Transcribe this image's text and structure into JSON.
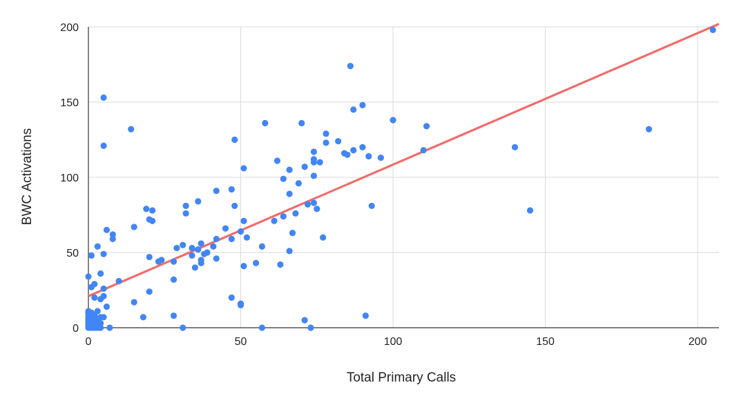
{
  "colors": {
    "point": "#4285f4",
    "trendline": "#f26b6b",
    "grid": "#d9d9d9",
    "axis": "#333333",
    "text": "#222222",
    "background": "#ffffff"
  },
  "chart_data": {
    "type": "scatter",
    "title": "",
    "xlabel": "Total Primary Calls",
    "ylabel": "BWC Activations",
    "xlim": [
      0,
      207
    ],
    "ylim": [
      0,
      200
    ],
    "xticks": [
      0,
      50,
      100,
      150,
      200
    ],
    "yticks": [
      0,
      50,
      100,
      150,
      200
    ],
    "grid": true,
    "legend": "none",
    "trendline": {
      "type": "linear",
      "points": [
        [
          0,
          21
        ],
        [
          207,
          202
        ]
      ]
    },
    "points": [
      [
        0,
        34
      ],
      [
        0,
        11
      ],
      [
        0,
        10
      ],
      [
        0,
        9
      ],
      [
        0,
        7
      ],
      [
        0,
        6
      ],
      [
        0,
        5
      ],
      [
        0,
        4
      ],
      [
        0,
        3
      ],
      [
        0,
        2
      ],
      [
        0,
        1
      ],
      [
        0,
        0
      ],
      [
        1,
        48
      ],
      [
        1,
        27
      ],
      [
        1,
        10
      ],
      [
        1,
        7
      ],
      [
        1,
        5
      ],
      [
        1,
        4
      ],
      [
        1,
        2
      ],
      [
        1,
        0
      ],
      [
        2,
        29
      ],
      [
        2,
        20
      ],
      [
        2,
        8
      ],
      [
        2,
        5
      ],
      [
        2,
        2
      ],
      [
        2,
        0
      ],
      [
        3,
        54
      ],
      [
        3,
        11
      ],
      [
        3,
        6
      ],
      [
        3,
        4
      ],
      [
        3,
        2
      ],
      [
        3,
        0
      ],
      [
        4,
        36
      ],
      [
        4,
        19
      ],
      [
        4,
        7
      ],
      [
        4,
        3
      ],
      [
        4,
        0
      ],
      [
        5,
        153
      ],
      [
        5,
        121
      ],
      [
        5,
        49
      ],
      [
        5,
        26
      ],
      [
        5,
        21
      ],
      [
        5,
        7
      ],
      [
        6,
        65
      ],
      [
        6,
        14
      ],
      [
        7,
        0
      ],
      [
        8,
        62
      ],
      [
        8,
        59
      ],
      [
        10,
        31
      ],
      [
        14,
        132
      ],
      [
        15,
        67
      ],
      [
        15,
        17
      ],
      [
        18,
        7
      ],
      [
        19,
        79
      ],
      [
        20,
        72
      ],
      [
        20,
        47
      ],
      [
        20,
        24
      ],
      [
        21,
        78
      ],
      [
        21,
        71
      ],
      [
        23,
        44
      ],
      [
        24,
        45
      ],
      [
        28,
        44
      ],
      [
        28,
        32
      ],
      [
        28,
        8
      ],
      [
        29,
        53
      ],
      [
        31,
        55
      ],
      [
        31,
        0
      ],
      [
        32,
        81
      ],
      [
        32,
        76
      ],
      [
        34,
        53
      ],
      [
        34,
        48
      ],
      [
        35,
        40
      ],
      [
        36,
        84
      ],
      [
        36,
        52
      ],
      [
        37,
        56
      ],
      [
        37,
        45
      ],
      [
        37,
        43
      ],
      [
        38,
        49
      ],
      [
        39,
        50
      ],
      [
        41,
        54
      ],
      [
        42,
        91
      ],
      [
        42,
        59
      ],
      [
        42,
        46
      ],
      [
        45,
        66
      ],
      [
        47,
        92
      ],
      [
        47,
        59
      ],
      [
        47,
        20
      ],
      [
        48,
        125
      ],
      [
        48,
        81
      ],
      [
        50,
        64
      ],
      [
        50,
        16
      ],
      [
        50,
        15
      ],
      [
        51,
        106
      ],
      [
        51,
        71
      ],
      [
        51,
        41
      ],
      [
        52,
        60
      ],
      [
        55,
        43
      ],
      [
        57,
        54
      ],
      [
        57,
        0
      ],
      [
        58,
        136
      ],
      [
        61,
        71
      ],
      [
        62,
        111
      ],
      [
        63,
        42
      ],
      [
        64,
        99
      ],
      [
        64,
        74
      ],
      [
        66,
        105
      ],
      [
        66,
        89
      ],
      [
        66,
        51
      ],
      [
        67,
        63
      ],
      [
        68,
        76
      ],
      [
        69,
        96
      ],
      [
        70,
        136
      ],
      [
        71,
        107
      ],
      [
        71,
        5
      ],
      [
        72,
        82
      ],
      [
        73,
        0
      ],
      [
        74,
        117
      ],
      [
        74,
        112
      ],
      [
        74,
        110
      ],
      [
        74,
        101
      ],
      [
        74,
        83
      ],
      [
        75,
        79
      ],
      [
        76,
        110
      ],
      [
        77,
        60
      ],
      [
        78,
        129
      ],
      [
        78,
        123
      ],
      [
        82,
        124
      ],
      [
        84,
        116
      ],
      [
        85,
        115
      ],
      [
        86,
        174
      ],
      [
        87,
        145
      ],
      [
        87,
        118
      ],
      [
        90,
        148
      ],
      [
        90,
        120
      ],
      [
        91,
        8
      ],
      [
        92,
        114
      ],
      [
        93,
        81
      ],
      [
        96,
        113
      ],
      [
        100,
        138
      ],
      [
        110,
        118
      ],
      [
        111,
        134
      ],
      [
        140,
        120
      ],
      [
        145,
        78
      ],
      [
        184,
        132
      ],
      [
        205,
        198
      ]
    ]
  }
}
